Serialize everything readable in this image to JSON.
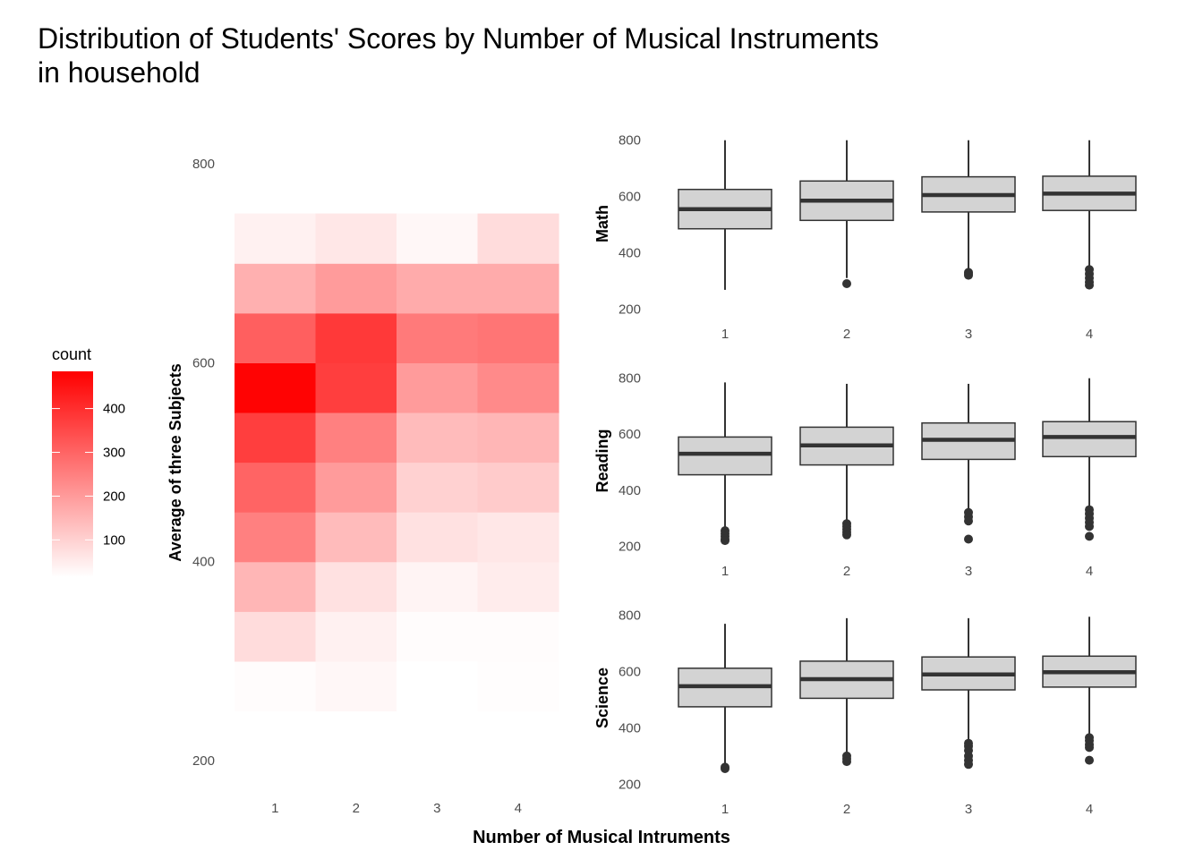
{
  "title_line1": "Distribution of Students' Scores by Number of Musical Instruments",
  "title_line2": "in household",
  "x_label": "Number of Musical Intruments",
  "chart_data": [
    {
      "type": "heatmap",
      "xlabel": "Number of Musical Intruments",
      "ylabel": "Average of three Subjects",
      "x_categories": [
        "1",
        "2",
        "3",
        "4"
      ],
      "y_ticks": [
        200,
        400,
        600,
        800
      ],
      "y_bins": [
        [
          250,
          300
        ],
        [
          300,
          350
        ],
        [
          350,
          400
        ],
        [
          400,
          450
        ],
        [
          450,
          500
        ],
        [
          500,
          550
        ],
        [
          550,
          600
        ],
        [
          600,
          650
        ],
        [
          650,
          700
        ],
        [
          700,
          750
        ]
      ],
      "counts": [
        [
          20,
          30,
          15,
          18
        ],
        [
          80,
          40,
          20,
          20
        ],
        [
          150,
          70,
          35,
          50
        ],
        [
          250,
          140,
          70,
          60
        ],
        [
          300,
          200,
          100,
          110
        ],
        [
          370,
          250,
          140,
          150
        ],
        [
          480,
          370,
          200,
          230
        ],
        [
          310,
          380,
          260,
          270
        ],
        [
          160,
          200,
          170,
          170
        ],
        [
          40,
          60,
          30,
          80
        ]
      ],
      "legend": {
        "title": "count",
        "ticks": [
          100,
          200,
          300,
          400
        ],
        "range": [
          15,
          485
        ],
        "color_low": "#ffffff",
        "color_high": "#ff0000"
      }
    },
    {
      "type": "boxplot",
      "panel_label": "Math",
      "categories": [
        "1",
        "2",
        "3",
        "4"
      ],
      "y_ticks": [
        200,
        400,
        600,
        800
      ],
      "ylim": [
        185,
        815
      ],
      "boxes": [
        {
          "lower_whisker": 268,
          "q1": 485,
          "median": 555,
          "q3": 625,
          "upper_whisker": 800,
          "outliers": []
        },
        {
          "lower_whisker": 310,
          "q1": 515,
          "median": 585,
          "q3": 655,
          "upper_whisker": 800,
          "outliers": [
            290
          ]
        },
        {
          "lower_whisker": 340,
          "q1": 545,
          "median": 605,
          "q3": 670,
          "upper_whisker": 800,
          "outliers": [
            330,
            325,
            320
          ]
        },
        {
          "lower_whisker": 345,
          "q1": 550,
          "median": 610,
          "q3": 672,
          "upper_whisker": 800,
          "outliers": [
            340,
            325,
            310,
            295,
            285
          ]
        }
      ]
    },
    {
      "type": "boxplot",
      "panel_label": "Reading",
      "categories": [
        "1",
        "2",
        "3",
        "4"
      ],
      "y_ticks": [
        200,
        400,
        600,
        800
      ],
      "ylim": [
        185,
        815
      ],
      "boxes": [
        {
          "lower_whisker": 260,
          "q1": 455,
          "median": 530,
          "q3": 590,
          "upper_whisker": 785,
          "outliers": [
            255,
            245,
            235,
            225,
            220
          ]
        },
        {
          "lower_whisker": 285,
          "q1": 490,
          "median": 560,
          "q3": 625,
          "upper_whisker": 780,
          "outliers": [
            280,
            270,
            260,
            250,
            240
          ]
        },
        {
          "lower_whisker": 330,
          "q1": 510,
          "median": 580,
          "q3": 640,
          "upper_whisker": 780,
          "outliers": [
            320,
            305,
            290,
            225
          ]
        },
        {
          "lower_whisker": 340,
          "q1": 520,
          "median": 590,
          "q3": 645,
          "upper_whisker": 800,
          "outliers": [
            330,
            315,
            300,
            285,
            270,
            235
          ]
        }
      ]
    },
    {
      "type": "boxplot",
      "panel_label": "Science",
      "categories": [
        "1",
        "2",
        "3",
        "4"
      ],
      "y_ticks": [
        200,
        400,
        600,
        800
      ],
      "ylim": [
        185,
        815
      ],
      "boxes": [
        {
          "lower_whisker": 265,
          "q1": 475,
          "median": 548,
          "q3": 612,
          "upper_whisker": 770,
          "outliers": [
            260,
            255
          ]
        },
        {
          "lower_whisker": 310,
          "q1": 505,
          "median": 573,
          "q3": 637,
          "upper_whisker": 790,
          "outliers": [
            300,
            290,
            280
          ]
        },
        {
          "lower_whisker": 355,
          "q1": 535,
          "median": 590,
          "q3": 652,
          "upper_whisker": 790,
          "outliers": [
            345,
            335,
            320,
            300,
            285,
            270
          ]
        },
        {
          "lower_whisker": 375,
          "q1": 545,
          "median": 598,
          "q3": 655,
          "upper_whisker": 795,
          "outliers": [
            365,
            355,
            340,
            330,
            285
          ]
        }
      ]
    }
  ]
}
